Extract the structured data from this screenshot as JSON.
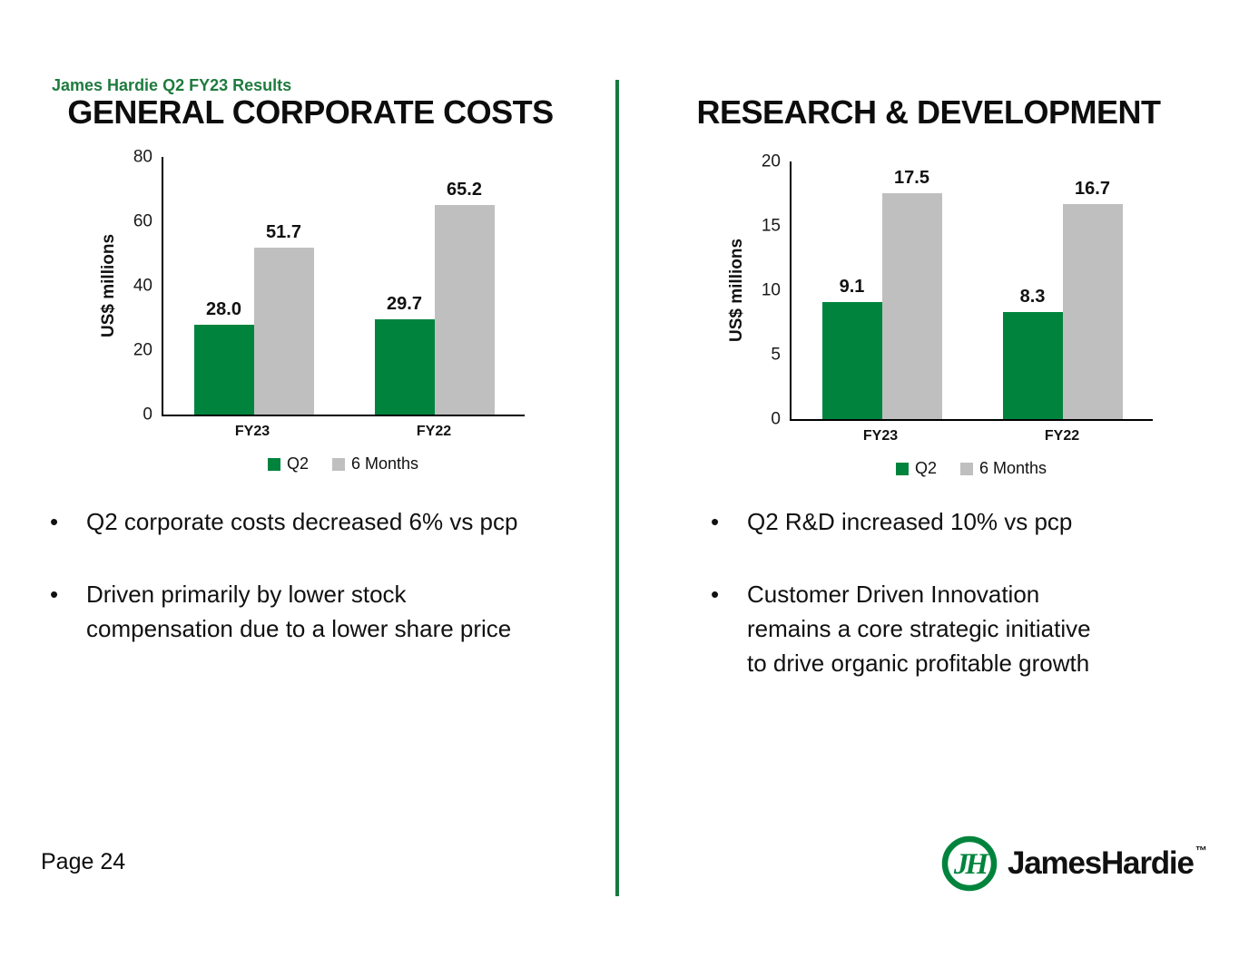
{
  "page": {
    "eyebrow": "James Hardie Q2 FY23 Results",
    "page_number": "Page 24"
  },
  "colors": {
    "accent_green": "#00843D",
    "bar_gray": "#BFBFBF",
    "header_green": "#1E7B3E",
    "divider_green": "#157A42",
    "axis_black": "#000000"
  },
  "left_panel": {
    "title": "GENERAL CORPORATE COSTS",
    "bullets": [
      [
        "Q2 corporate costs decreased 6% vs pcp"
      ],
      [
        "Driven primarily by lower stock",
        "compensation due to a lower share price"
      ]
    ]
  },
  "right_panel": {
    "title": "RESEARCH & DEVELOPMENT",
    "bullets": [
      [
        "Q2 R&D increased 10% vs pcp"
      ],
      [
        "Customer Driven Innovation",
        "remains a core strategic initiative",
        "to drive organic profitable growth"
      ]
    ]
  },
  "logo": {
    "monogram": "JH",
    "wordmark": "JamesHardie",
    "tm": "™"
  },
  "bullet_glyph": "•",
  "chart_data": [
    {
      "type": "bar",
      "title": "GENERAL CORPORATE COSTS",
      "categories": [
        "FY23",
        "FY22"
      ],
      "series": [
        {
          "name": "Q2",
          "values": [
            28.0,
            29.7
          ],
          "labels": [
            "28.0",
            "29.7"
          ],
          "color": "#00843D"
        },
        {
          "name": "6 Months",
          "values": [
            51.7,
            65.2
          ],
          "labels": [
            "51.7",
            "65.2"
          ],
          "color": "#BFBFBF"
        }
      ],
      "xlabel": "",
      "ylabel": "US$ millions",
      "ylim": [
        0,
        80
      ],
      "yticks": [
        0,
        20,
        40,
        60,
        80
      ],
      "grid": false,
      "legend_position": "bottom"
    },
    {
      "type": "bar",
      "title": "RESEARCH & DEVELOPMENT",
      "categories": [
        "FY23",
        "FY22"
      ],
      "series": [
        {
          "name": "Q2",
          "values": [
            9.1,
            8.3
          ],
          "labels": [
            "9.1",
            "8.3"
          ],
          "color": "#00843D"
        },
        {
          "name": "6 Months",
          "values": [
            17.5,
            16.7
          ],
          "labels": [
            "17.5",
            "16.7"
          ],
          "color": "#BFBFBF"
        }
      ],
      "xlabel": "",
      "ylabel": "US$ millions",
      "ylim": [
        0,
        20
      ],
      "yticks": [
        0,
        5,
        10,
        15,
        20
      ],
      "grid": false,
      "legend_position": "bottom"
    }
  ]
}
